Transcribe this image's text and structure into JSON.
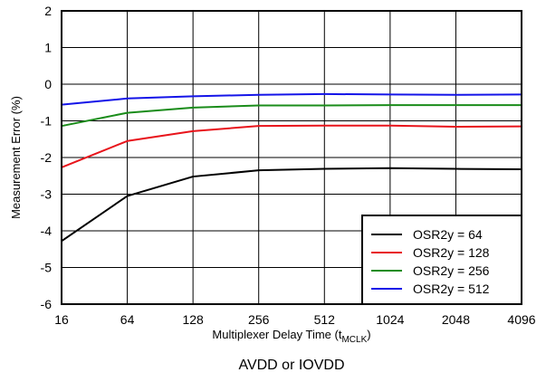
{
  "chart_data": {
    "type": "line",
    "title": "",
    "caption": "AVDD or IOVDD",
    "xlabel": {
      "main": "Multiplexer Delay Time (t",
      "sub": "MCLK",
      "close": ")"
    },
    "ylabel": "Measurement Error (%)",
    "x_scale": "log2",
    "categories": [
      "16",
      "64",
      "128",
      "256",
      "512",
      "1024",
      "2048",
      "4096"
    ],
    "x": [
      16,
      64,
      128,
      256,
      512,
      1024,
      2048,
      4096
    ],
    "ylim": [
      -6,
      2
    ],
    "yticks": [
      "2",
      "1",
      "0",
      "-1",
      "-2",
      "-3",
      "-4",
      "-5",
      "-6"
    ],
    "grid": true,
    "legend_position": "bottom-right",
    "series": [
      {
        "name": "OSR2y = 64",
        "color": "#000000",
        "values": [
          -4.28,
          -3.05,
          -2.52,
          -2.35,
          -2.31,
          -2.29,
          -2.31,
          -2.32
        ]
      },
      {
        "name": "OSR2y = 128",
        "color": "#e8141b",
        "values": [
          -2.27,
          -1.55,
          -1.28,
          -1.14,
          -1.13,
          -1.13,
          -1.16,
          -1.15
        ]
      },
      {
        "name": "OSR2y = 256",
        "color": "#1a8c1a",
        "values": [
          -1.14,
          -0.78,
          -0.64,
          -0.58,
          -0.58,
          -0.57,
          -0.57,
          -0.57
        ]
      },
      {
        "name": "OSR2y = 512",
        "color": "#1414e8",
        "values": [
          -0.56,
          -0.39,
          -0.33,
          -0.29,
          -0.27,
          -0.28,
          -0.29,
          -0.28
        ]
      }
    ]
  }
}
